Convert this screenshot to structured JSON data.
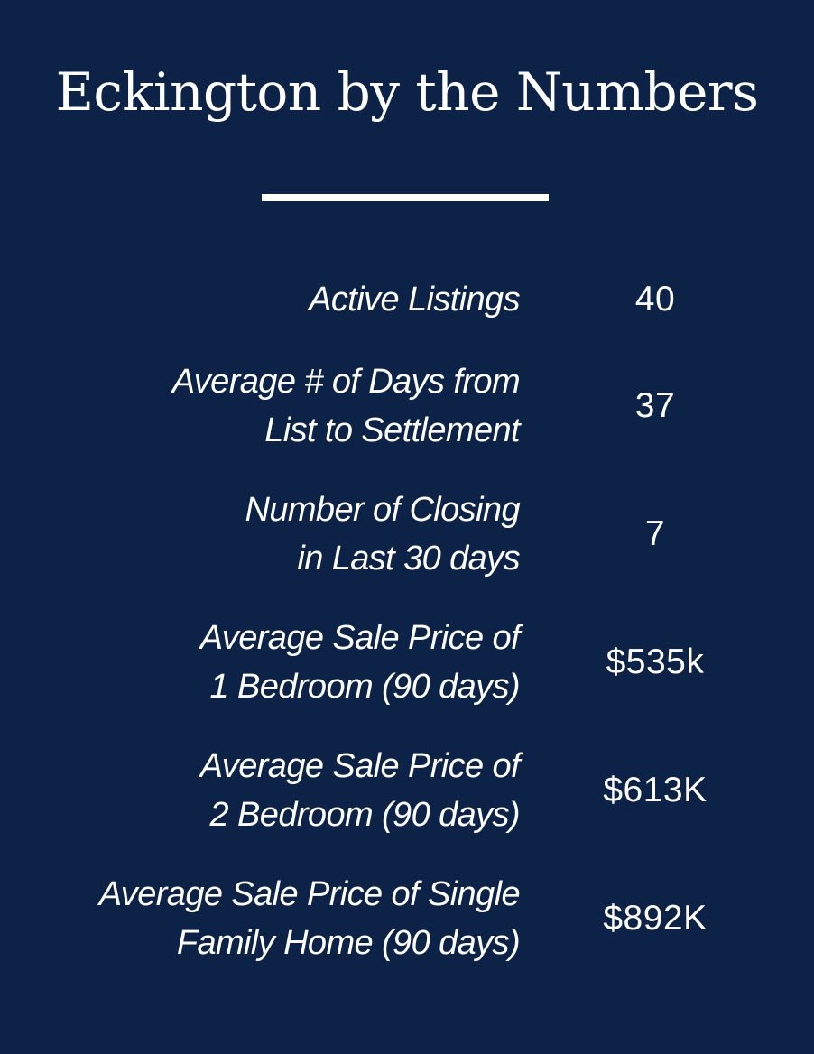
{
  "title": "Eckington by the Numbers",
  "stats": [
    {
      "label_lines": [
        "Active Listings"
      ],
      "value": "40"
    },
    {
      "label_lines": [
        "Average # of Days from",
        "List to Settlement"
      ],
      "value": "37"
    },
    {
      "label_lines": [
        "Number of Closing",
        "in Last 30 days"
      ],
      "value": "7"
    },
    {
      "label_lines": [
        "Average Sale Price of",
        "1 Bedroom (90 days)"
      ],
      "value": "$535k"
    },
    {
      "label_lines": [
        "Average Sale Price of",
        "2 Bedroom (90 days)"
      ],
      "value": "$613K"
    },
    {
      "label_lines": [
        "Average Sale Price of Single",
        "Family Home (90 days)"
      ],
      "value": "$892K"
    }
  ],
  "colors": {
    "background": "#0c2246",
    "text": "#ffffff"
  }
}
